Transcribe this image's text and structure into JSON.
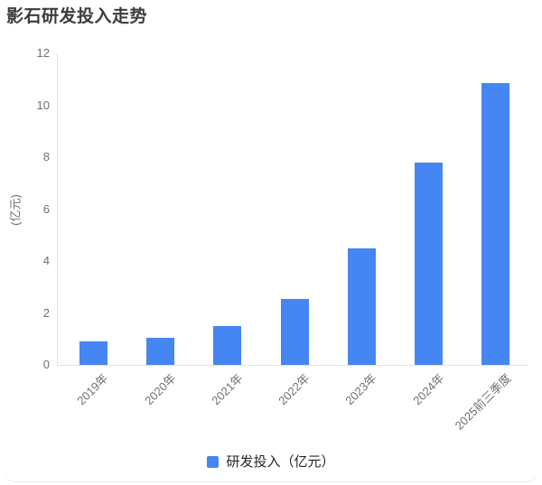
{
  "page": {
    "title": "影石研发投入走势"
  },
  "chart_data": {
    "type": "bar",
    "title": "影石研发投入走势",
    "categories": [
      "2019年",
      "2020年",
      "2021年",
      "2022年",
      "2023年",
      "2024年",
      "2025前三季度"
    ],
    "values": [
      0.9,
      1.03,
      1.5,
      2.55,
      4.47,
      7.78,
      10.85
    ],
    "series_name": "研发投入（亿元）",
    "xlabel": "",
    "ylabel": "(亿元)",
    "ylim": [
      0,
      12
    ],
    "yticks": [
      0,
      2,
      4,
      6,
      8,
      10,
      12
    ],
    "grid": false,
    "x_label_rotation_deg": 45,
    "legend_position": "bottom"
  },
  "legend": {
    "label": "研发投入（亿元）"
  },
  "colors": {
    "bar": "#4686f2",
    "axis_line": "#e2e2e2",
    "tick_text": "#707070",
    "title_text": "#3c3c3c",
    "legend_text": "#262626"
  }
}
